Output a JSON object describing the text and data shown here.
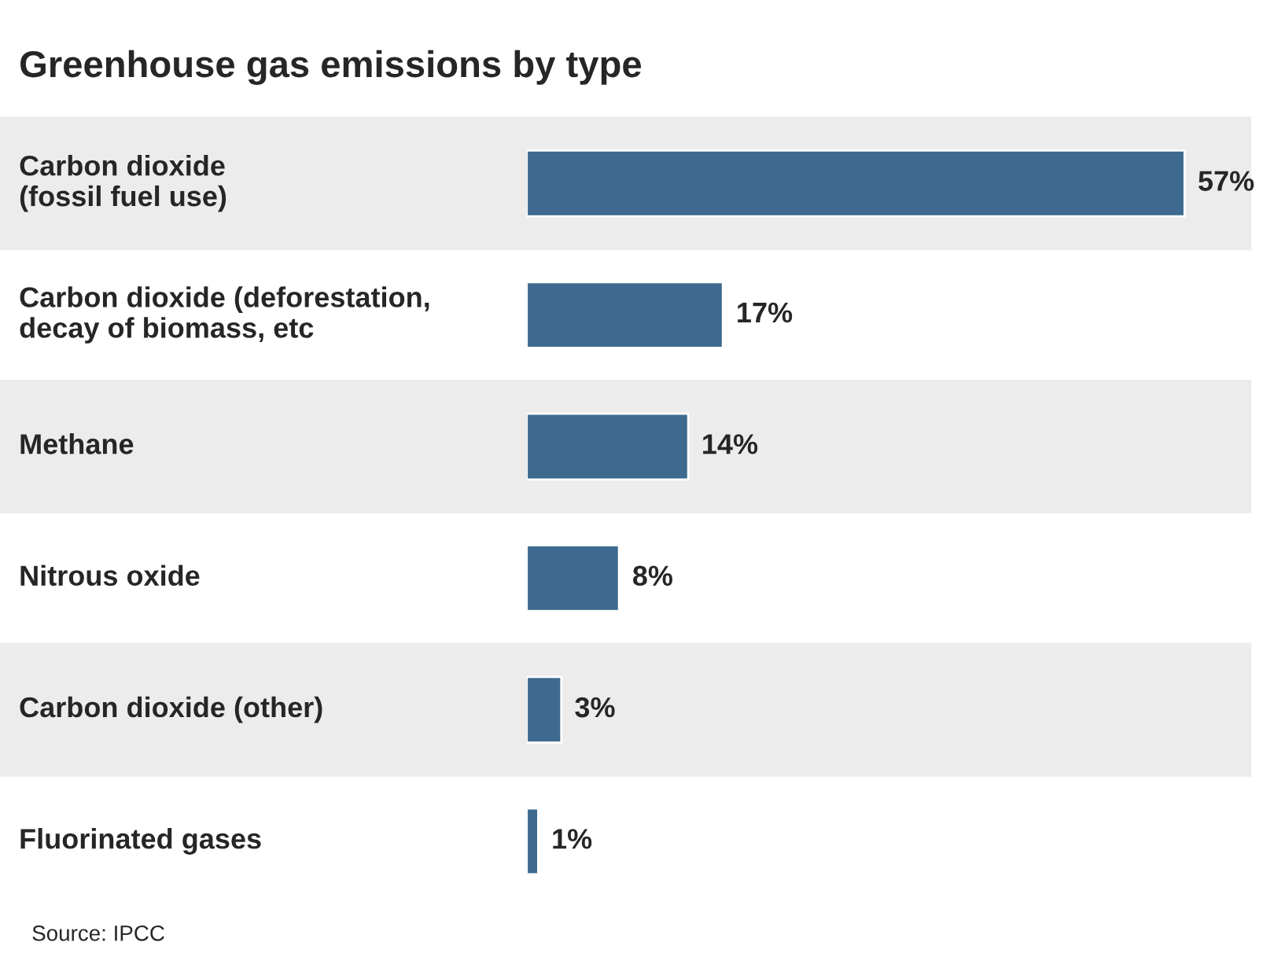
{
  "chart_data": {
    "type": "bar",
    "orientation": "horizontal",
    "title": "Greenhouse gas emissions by type",
    "categories": [
      "Carbon dioxide\n(fossil fuel use)",
      "Carbon dioxide (deforestation,\ndecay of biomass, etc",
      "Methane",
      "Nitrous oxide",
      "Carbon dioxide (other)",
      "Fluorinated gases"
    ],
    "values": [
      57,
      17,
      14,
      8,
      3,
      1
    ],
    "value_labels": [
      "57%",
      "17%",
      "14%",
      "8%",
      "3%",
      "1%"
    ],
    "color": "#3d6a8e",
    "annotations": [
      "Source: IPCC"
    ]
  }
}
